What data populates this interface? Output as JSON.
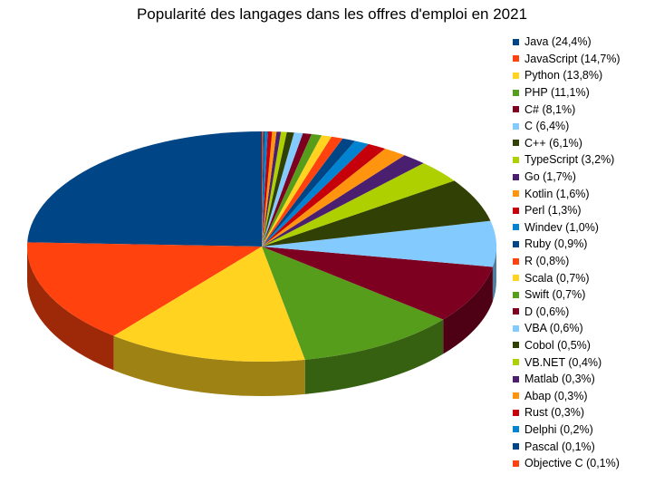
{
  "chart_data": {
    "type": "pie",
    "title": "Popularité des langages dans les offres d'emploi en 2021",
    "legend_position": "right",
    "slices": [
      {
        "label": "Java (24,4%)",
        "value": 24.4,
        "color": "#004586"
      },
      {
        "label": "JavaScript (14,7%)",
        "value": 14.7,
        "color": "#ff420e"
      },
      {
        "label": "Python (13,8%)",
        "value": 13.8,
        "color": "#ffd320"
      },
      {
        "label": "PHP (11,1%)",
        "value": 11.1,
        "color": "#579d1c"
      },
      {
        "label": "C# (8,1%)",
        "value": 8.1,
        "color": "#7e0021"
      },
      {
        "label": "C (6,4%)",
        "value": 6.4,
        "color": "#83caff"
      },
      {
        "label": "C++ (6,1%)",
        "value": 6.1,
        "color": "#314004"
      },
      {
        "label": "TypeScript (3,2%)",
        "value": 3.2,
        "color": "#aecf00"
      },
      {
        "label": "Go (1,7%)",
        "value": 1.7,
        "color": "#4b1f6f"
      },
      {
        "label": "Kotlin (1,6%)",
        "value": 1.6,
        "color": "#ff950e"
      },
      {
        "label": "Perl (1,3%)",
        "value": 1.3,
        "color": "#c5000b"
      },
      {
        "label": "Windev (1,0%)",
        "value": 1.0,
        "color": "#0084d1"
      },
      {
        "label": "Ruby (0,9%)",
        "value": 0.9,
        "color": "#004586"
      },
      {
        "label": "R (0,8%)",
        "value": 0.8,
        "color": "#ff420e"
      },
      {
        "label": "Scala (0,7%)",
        "value": 0.7,
        "color": "#ffd320"
      },
      {
        "label": "Swift (0,7%)",
        "value": 0.7,
        "color": "#579d1c"
      },
      {
        "label": "D (0,6%)",
        "value": 0.6,
        "color": "#7e0021"
      },
      {
        "label": "VBA (0,6%)",
        "value": 0.6,
        "color": "#83caff"
      },
      {
        "label": "Cobol (0,5%)",
        "value": 0.5,
        "color": "#314004"
      },
      {
        "label": "VB.NET (0,4%)",
        "value": 0.4,
        "color": "#aecf00"
      },
      {
        "label": "Matlab (0,3%)",
        "value": 0.3,
        "color": "#4b1f6f"
      },
      {
        "label": "Abap (0,3%)",
        "value": 0.3,
        "color": "#ff950e"
      },
      {
        "label": "Rust (0,3%)",
        "value": 0.3,
        "color": "#c5000b"
      },
      {
        "label": "Delphi (0,2%)",
        "value": 0.2,
        "color": "#0084d1"
      },
      {
        "label": "Pascal (0,1%)",
        "value": 0.1,
        "color": "#004586"
      },
      {
        "label": "Objective C (0,1%)",
        "value": 0.1,
        "color": "#ff420e"
      }
    ]
  }
}
